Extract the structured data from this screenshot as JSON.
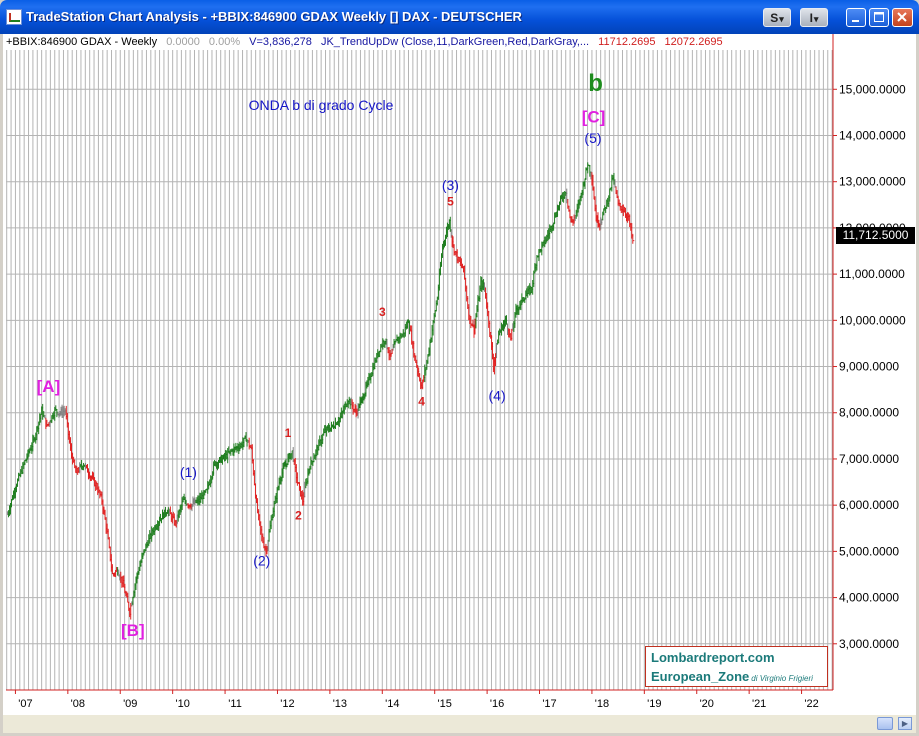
{
  "window": {
    "title": "TradeStation Chart Analysis - +BBIX:846900 GDAX Weekly [] DAX - DEUTSCHER",
    "buttons": {
      "s": "S",
      "i": "I",
      "s_arrow": "▾",
      "i_arrow": "▾"
    }
  },
  "info_line": {
    "symbol": "+BBIX:846900 GDAX - Weekly",
    "change": "0.0000",
    "change_pct": "0.00%",
    "volume": "V=3,836,278",
    "indicator": "JK_TrendUpDw (Close,11,DarkGreen,Red,DarkGray,...",
    "value1": "11712.2695",
    "value2": "12072.2695"
  },
  "annotation_title": "ONDA b di grado Cycle",
  "last_price": "11,712.5000",
  "credit": {
    "line1": "Lombardreport.com",
    "line2": "European_Zone",
    "line2_small": "di Virginio Frigieri"
  },
  "colors": {
    "up": "#1e7d1e",
    "down": "#e02020",
    "neutral": "#808080",
    "blue_label": "#1616c8",
    "magenta_label": "#e020e0",
    "red_label": "#d82020",
    "green_label": "#1e8c1e",
    "axis_red": "#d02020"
  },
  "chart_data": {
    "type": "line",
    "title": "",
    "x_tick_labels": [
      "'07",
      "'08",
      "'09",
      "'10",
      "'11",
      "'12",
      "'13",
      "'14",
      "'15",
      "'16",
      "'17",
      "'18",
      "'19",
      "'20",
      "'21",
      "'22"
    ],
    "y_tick_labels": [
      "3,000.0000",
      "4,000.0000",
      "5,000.0000",
      "6,000.0000",
      "7,000.0000",
      "8,000.0000",
      "9,000.0000",
      "10,000.0000",
      "11,000.0000",
      "12,000.0000",
      "13,000.0000",
      "14,000.0000",
      "15,000.0000"
    ],
    "y_ticks": [
      3000,
      4000,
      5000,
      6000,
      7000,
      8000,
      9000,
      10000,
      11000,
      12000,
      13000,
      14000,
      15000
    ],
    "x_ticks": [
      2007,
      2008,
      2009,
      2010,
      2011,
      2012,
      2013,
      2014,
      2015,
      2016,
      2017,
      2018,
      2019,
      2020,
      2021,
      2022
    ],
    "xlim": [
      2006.82,
      2022.6
    ],
    "ylim": [
      2000,
      15850
    ],
    "series": [
      {
        "values": [
          [
            2006.85,
            5800
          ],
          [
            2007.0,
            6400
          ],
          [
            2007.2,
            7000
          ],
          [
            2007.35,
            7400
          ],
          [
            2007.5,
            8050
          ],
          [
            2007.6,
            7700
          ],
          [
            2007.75,
            8050
          ],
          [
            2007.85,
            8000
          ],
          [
            2007.95,
            8050
          ],
          [
            2008.05,
            7200
          ],
          [
            2008.15,
            6700
          ],
          [
            2008.3,
            6900
          ],
          [
            2008.45,
            6600
          ],
          [
            2008.55,
            6400
          ],
          [
            2008.65,
            6100
          ],
          [
            2008.75,
            5400
          ],
          [
            2008.85,
            4500
          ],
          [
            2008.95,
            4600
          ],
          [
            2009.05,
            4300
          ],
          [
            2009.18,
            3700
          ],
          [
            2009.3,
            4400
          ],
          [
            2009.45,
            5000
          ],
          [
            2009.6,
            5400
          ],
          [
            2009.75,
            5700
          ],
          [
            2009.9,
            5900
          ],
          [
            2010.05,
            5600
          ],
          [
            2010.2,
            6100
          ],
          [
            2010.35,
            6000
          ],
          [
            2010.5,
            6100
          ],
          [
            2010.65,
            6300
          ],
          [
            2010.8,
            6900
          ],
          [
            2010.95,
            7000
          ],
          [
            2011.15,
            7200
          ],
          [
            2011.3,
            7300
          ],
          [
            2011.4,
            7450
          ],
          [
            2011.5,
            7200
          ],
          [
            2011.6,
            6000
          ],
          [
            2011.7,
            5300
          ],
          [
            2011.78,
            5000
          ],
          [
            2011.9,
            5800
          ],
          [
            2012.05,
            6600
          ],
          [
            2012.2,
            7000
          ],
          [
            2012.28,
            7150
          ],
          [
            2012.38,
            6500
          ],
          [
            2012.48,
            6100
          ],
          [
            2012.6,
            6800
          ],
          [
            2012.75,
            7200
          ],
          [
            2012.9,
            7600
          ],
          [
            2013.05,
            7700
          ],
          [
            2013.2,
            7900
          ],
          [
            2013.35,
            8300
          ],
          [
            2013.5,
            8000
          ],
          [
            2013.65,
            8400
          ],
          [
            2013.8,
            8900
          ],
          [
            2013.95,
            9400
          ],
          [
            2014.05,
            9600
          ],
          [
            2014.15,
            9200
          ],
          [
            2014.28,
            9600
          ],
          [
            2014.4,
            9700
          ],
          [
            2014.5,
            10000
          ],
          [
            2014.6,
            9300
          ],
          [
            2014.75,
            8550
          ],
          [
            2014.85,
            9100
          ],
          [
            2014.95,
            9800
          ],
          [
            2015.05,
            10500
          ],
          [
            2015.15,
            11600
          ],
          [
            2015.28,
            12150
          ],
          [
            2015.35,
            11600
          ],
          [
            2015.45,
            11300
          ],
          [
            2015.55,
            11100
          ],
          [
            2015.65,
            10100
          ],
          [
            2015.75,
            9800
          ],
          [
            2015.88,
            10800
          ],
          [
            2015.95,
            10700
          ],
          [
            2016.05,
            9800
          ],
          [
            2016.12,
            9000
          ],
          [
            2016.22,
            9700
          ],
          [
            2016.35,
            10000
          ],
          [
            2016.45,
            9600
          ],
          [
            2016.55,
            10200
          ],
          [
            2016.7,
            10500
          ],
          [
            2016.85,
            10700
          ],
          [
            2016.95,
            11400
          ],
          [
            2017.1,
            11700
          ],
          [
            2017.25,
            12100
          ],
          [
            2017.4,
            12600
          ],
          [
            2017.5,
            12800
          ],
          [
            2017.6,
            12100
          ],
          [
            2017.7,
            12300
          ],
          [
            2017.85,
            13000
          ],
          [
            2017.92,
            13400
          ],
          [
            2018.0,
            13100
          ],
          [
            2018.08,
            12200
          ],
          [
            2018.15,
            12100
          ],
          [
            2018.3,
            12600
          ],
          [
            2018.4,
            13100
          ],
          [
            2018.5,
            12500
          ],
          [
            2018.6,
            12400
          ],
          [
            2018.7,
            12200
          ],
          [
            2018.78,
            11700
          ]
        ]
      }
    ],
    "wave_labels": [
      {
        "text": "[A]",
        "x": 2007.63,
        "y": 8550,
        "color": "magenta"
      },
      {
        "text": "[B]",
        "x": 2009.24,
        "y": 3270,
        "color": "magenta"
      },
      {
        "text": "[C]",
        "x": 2018.03,
        "y": 14380,
        "color": "magenta"
      },
      {
        "text": "b",
        "x": 2018.07,
        "y": 15100,
        "color": "green"
      },
      {
        "text": "(1)",
        "x": 2010.3,
        "y": 6690,
        "color": "blue"
      },
      {
        "text": "(2)",
        "x": 2011.7,
        "y": 4770,
        "color": "blue"
      },
      {
        "text": "(3)",
        "x": 2015.3,
        "y": 12900,
        "color": "blue"
      },
      {
        "text": "(4)",
        "x": 2016.19,
        "y": 8340,
        "color": "blue"
      },
      {
        "text": "(5)",
        "x": 2018.02,
        "y": 13920,
        "color": "blue"
      },
      {
        "text": "1",
        "x": 2012.2,
        "y": 7540,
        "color": "red"
      },
      {
        "text": "2",
        "x": 2012.4,
        "y": 5760,
        "color": "red"
      },
      {
        "text": "3",
        "x": 2014.0,
        "y": 10160,
        "color": "red"
      },
      {
        "text": "4",
        "x": 2014.75,
        "y": 8220,
        "color": "red"
      },
      {
        "text": "5",
        "x": 2015.3,
        "y": 12550,
        "color": "red"
      }
    ],
    "grid": true,
    "legend": "none"
  }
}
